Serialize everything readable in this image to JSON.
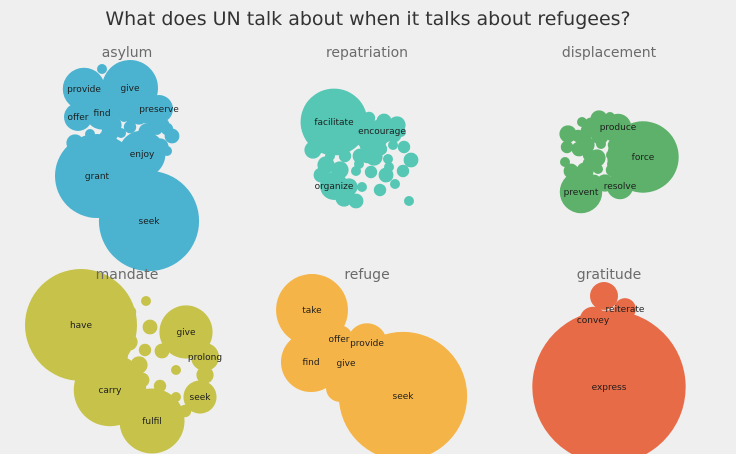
{
  "chart_data": {
    "type": "bubble",
    "title": "What does UN talk about when it talks about refugees?",
    "panels": [
      {
        "name": "asylum",
        "color": "#4bb3d0",
        "labeled": [
          {
            "label": "provide",
            "size": 2.3
          },
          {
            "label": "give",
            "size": 4.0
          },
          {
            "label": "preserve",
            "size": 1.0
          },
          {
            "label": "find",
            "size": 1.4
          },
          {
            "label": "offer",
            "size": 1.0
          },
          {
            "label": "enjoy",
            "size": 2.8
          },
          {
            "label": "grant",
            "size": 9.0
          },
          {
            "label": "seek",
            "size": 12.8
          }
        ],
        "unlabeled_count": 26
      },
      {
        "name": "repatriation",
        "color": "#55c7b4",
        "labeled": [
          {
            "label": "facilitate",
            "size": 5.7
          },
          {
            "label": "encourage",
            "size": 0.8
          },
          {
            "label": "organize",
            "size": 1.0
          }
        ],
        "unlabeled_count": 39
      },
      {
        "name": "displacement",
        "color": "#5db16a",
        "labeled": [
          {
            "label": "produce",
            "size": 0.9
          },
          {
            "label": "force",
            "size": 6.5
          },
          {
            "label": "prevent",
            "size": 2.3
          },
          {
            "label": "resolve",
            "size": 0.9
          }
        ],
        "unlabeled_count": 31
      },
      {
        "name": "mandate",
        "color": "#c6c24a",
        "labeled": [
          {
            "label": "have",
            "size": 16.0
          },
          {
            "label": "give",
            "size": 3.6
          },
          {
            "label": "prolong",
            "size": 1.0
          },
          {
            "label": "carry",
            "size": 6.7
          },
          {
            "label": "seek",
            "size": 1.4
          },
          {
            "label": "fulfil",
            "size": 5.4
          }
        ],
        "unlabeled_count": 14
      },
      {
        "name": "refuge",
        "color": "#f5b447",
        "labeled": [
          {
            "label": "take",
            "size": 6.6
          },
          {
            "label": "offer",
            "size": 1.0
          },
          {
            "label": "provide",
            "size": 2.0
          },
          {
            "label": "find",
            "size": 4.6
          },
          {
            "label": "give",
            "size": 1.3
          },
          {
            "label": "seek",
            "size": 21.0
          }
        ],
        "unlabeled_count": 1
      },
      {
        "name": "gratitude",
        "color": "#e86b47",
        "labeled": [
          {
            "label": "reiterate",
            "size": 0.6
          },
          {
            "label": "convey",
            "size": 0.9
          },
          {
            "label": "express",
            "size": 30.0
          }
        ],
        "unlabeled_count": 1
      }
    ]
  }
}
